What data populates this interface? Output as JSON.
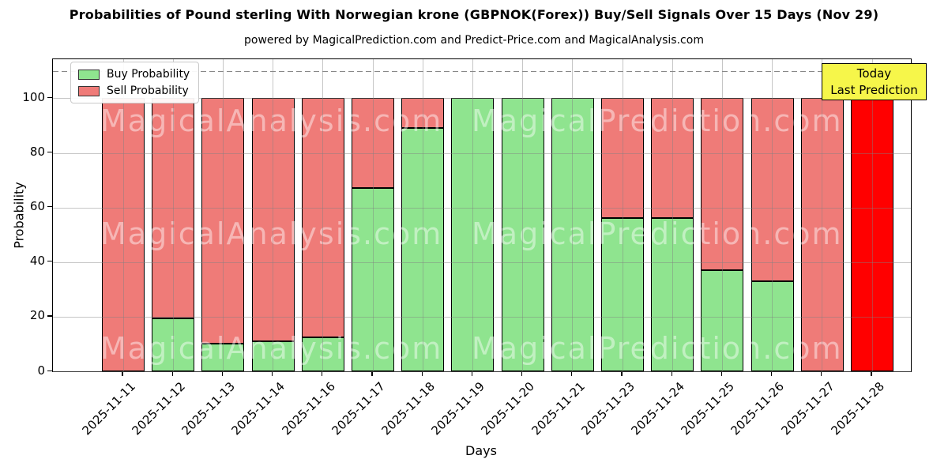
{
  "header": {
    "title": "Probabilities of Pound sterling With Norwegian krone (GBPNOK(Forex)) Buy/Sell Signals Over 15 Days (Nov 29)",
    "subtitle": "powered by MagicalPrediction.com and Predict-Price.com and MagicalAnalysis.com"
  },
  "legend": {
    "items": [
      {
        "label": "Buy Probability",
        "color": "#8FE48F"
      },
      {
        "label": "Sell Probability",
        "color": "#EF7B78"
      }
    ]
  },
  "annotation": {
    "line1": "Today",
    "line2": "Last Prediction",
    "bg_color": "#F6F64A"
  },
  "axes": {
    "xlabel": "Days",
    "ylabel": "Probability"
  },
  "watermarks": {
    "left": "MagicalAnalysis.com",
    "right": "MagicalPrediction.com"
  },
  "colors": {
    "buy": "#8FE48F",
    "sell": "#EF7B78",
    "today_sell": "#FF0000",
    "bar_edge": "#000000",
    "grid": "#808080",
    "dashed_guide": "#888888"
  },
  "chart_data": {
    "type": "bar",
    "stacked": true,
    "title": "Probabilities of Pound sterling With Norwegian krone (GBPNOK(Forex)) Buy/Sell Signals Over 15 Days (Nov 29)",
    "xlabel": "Days",
    "ylabel": "Probability",
    "ylim": [
      0,
      114.3
    ],
    "yticks": [
      0,
      20,
      40,
      60,
      80,
      100
    ],
    "grid": true,
    "dashed_guide_y": 110,
    "legend_position": "upper left",
    "categories": [
      "2025-11-11",
      "2025-11-12",
      "2025-11-13",
      "2025-11-14",
      "2025-11-16",
      "2025-11-17",
      "2025-11-18",
      "2025-11-19",
      "2025-11-20",
      "2025-11-21",
      "2025-11-23",
      "2025-11-24",
      "2025-11-25",
      "2025-11-26",
      "2025-11-27",
      "2025-11-28"
    ],
    "series": [
      {
        "name": "Buy Probability",
        "color": "#8FE48F",
        "values": [
          0,
          19.5,
          10,
          11,
          12.5,
          67,
          89,
          100,
          100,
          100,
          56,
          56,
          37,
          33,
          0,
          0
        ]
      },
      {
        "name": "Sell Probability",
        "color": "#EF7B78",
        "values": [
          100,
          80.5,
          90,
          89,
          87.5,
          33,
          11,
          0,
          0,
          0,
          44,
          44,
          63,
          67,
          100,
          100
        ]
      }
    ],
    "highlight": {
      "index": 15,
      "sell_color": "#FF0000",
      "label": "Today / Last Prediction"
    }
  }
}
